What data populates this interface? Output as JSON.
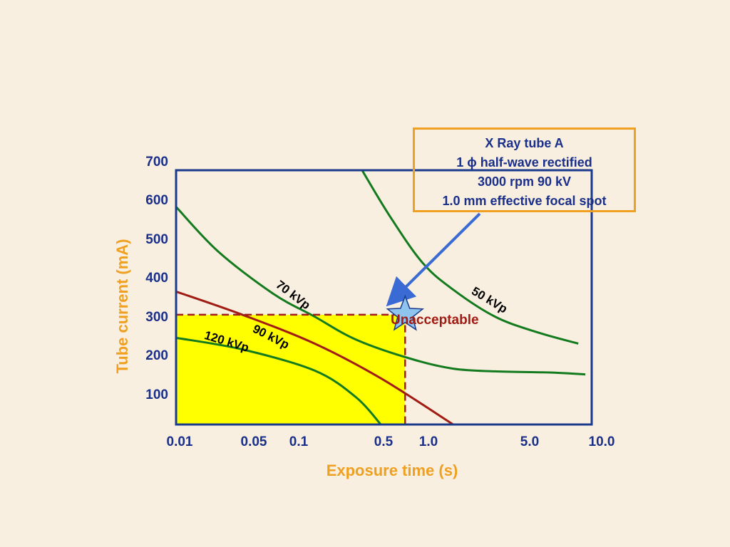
{
  "chart_data": {
    "type": "line",
    "xlabel": "Exposure time (s)",
    "ylabel": "Tube current (mA)",
    "xscale": "log",
    "xlim": [
      0.01,
      10.0
    ],
    "ylim": [
      20,
      680
    ],
    "x_ticks": [
      "0.01",
      "0.05",
      "0.1",
      "0.5",
      "1.0",
      "5.0",
      "10.0"
    ],
    "y_ticks": [
      "100",
      "200",
      "300",
      "400",
      "500",
      "600",
      "700"
    ],
    "series": [
      {
        "name": "50 kVp",
        "color": "#147a1e",
        "x": [
          0.22,
          0.35,
          0.6,
          1.0,
          2.0,
          4.0,
          8.0
        ],
        "y": [
          680,
          560,
          440,
          370,
          300,
          260,
          230
        ]
      },
      {
        "name": "70 kVp",
        "color": "#147a1e",
        "x": [
          0.01,
          0.02,
          0.05,
          0.1,
          0.2,
          0.5,
          1.0,
          2.0,
          5.0,
          9.0
        ],
        "y": [
          585,
          470,
          360,
          300,
          240,
          190,
          165,
          158,
          155,
          150
        ]
      },
      {
        "name": "90 kVp",
        "color": "#a01c14",
        "x": [
          0.01,
          0.03,
          0.1,
          0.3,
          1.0
        ],
        "y": [
          365,
          305,
          230,
          140,
          20
        ]
      },
      {
        "name": "120 kVp",
        "color": "#147a1e",
        "x": [
          0.01,
          0.03,
          0.1,
          0.2,
          0.3
        ],
        "y": [
          245,
          215,
          160,
          90,
          20
        ]
      }
    ],
    "shaded_region": {
      "x": [
        0.01,
        0.45
      ],
      "y": [
        20,
        305
      ],
      "color": "#ffff00"
    },
    "marker": {
      "x": 0.45,
      "y": 305,
      "label": "Unacceptable",
      "shape": "star"
    },
    "info_box": [
      "X Ray tube A",
      "1 ϕ half-wave rectified",
      "3000 rpm  90 kV",
      "1.0 mm effective focal spot"
    ]
  },
  "colors": {
    "background": "#f8efe0",
    "axis": "#1a3a8c",
    "curve_green": "#147a1e",
    "curve_red": "#a01c14",
    "fill": "#ffff00",
    "star_fill": "#8ec4ee",
    "arrow": "#3a6ad4",
    "box_border": "#f0a020"
  }
}
